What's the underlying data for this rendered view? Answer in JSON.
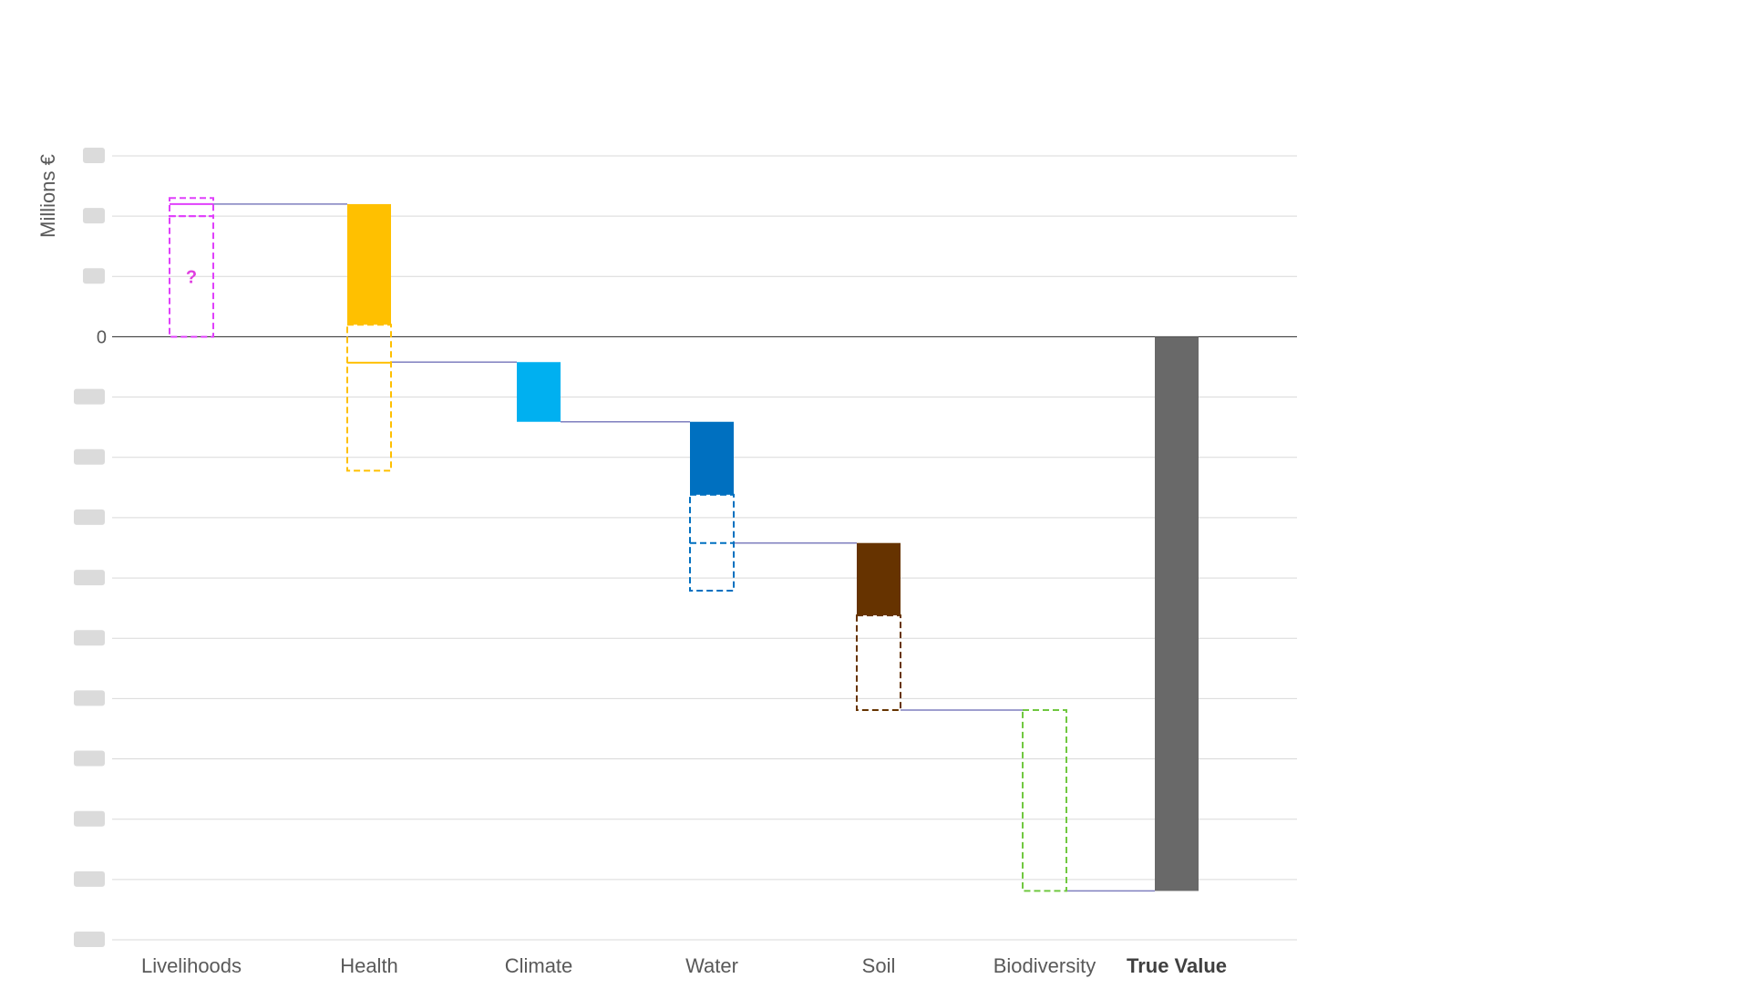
{
  "chart_data": {
    "type": "waterfall",
    "ylabel": "Millions €",
    "ylim": [
      -1000,
      300
    ],
    "grid": true,
    "tick_values": [
      300,
      200,
      100,
      0,
      -100,
      -200,
      -300,
      -400,
      -500,
      -600,
      -700,
      -800,
      -900,
      -1000
    ],
    "tick_labels": [
      "",
      "",
      "",
      "0",
      "",
      "",
      "",
      "",
      "",
      "",
      "",
      "",
      "",
      ""
    ],
    "categories": [
      "Livelihoods",
      "Health",
      "Climate",
      "Water",
      "Soil",
      "Biodiversity",
      "True Value"
    ],
    "steps": [
      {
        "category": "Livelihoods",
        "color": "#e040fb",
        "solid": null,
        "dashed": [
          [
            0,
            200
          ],
          [
            200,
            230
          ]
        ],
        "solid_line_at": 220,
        "annotation": "?"
      },
      {
        "category": "Health",
        "color": "#ffc000",
        "solid": [
          20,
          220
        ],
        "dashed": [
          [
            -222,
            20
          ]
        ],
        "solid_line_at": -43,
        "annotation": ""
      },
      {
        "category": "Climate",
        "color": "#00b0f0",
        "solid": [
          -141,
          -42
        ],
        "dashed": [],
        "solid_line_at": null,
        "annotation": ""
      },
      {
        "category": "Water",
        "color": "#0070c0",
        "solid": [
          -262,
          -141
        ],
        "dashed": [
          [
            -421,
            -262
          ],
          [
            -342,
            -342
          ]
        ],
        "solid_line_at": null,
        "annotation": ""
      },
      {
        "category": "Soil",
        "color": "#663300",
        "solid": [
          -462,
          -342
        ],
        "dashed": [
          [
            -619,
            -462
          ]
        ],
        "solid_line_at": null,
        "annotation": ""
      },
      {
        "category": "Biodiversity",
        "color": "#70c840",
        "solid": null,
        "dashed": [
          [
            -919,
            -619
          ]
        ],
        "solid_line_at": null,
        "annotation": ""
      },
      {
        "category": "True Value",
        "color": "#696969",
        "solid": [
          -919,
          0
        ],
        "dashed": [],
        "solid_line_at": null,
        "annotation": ""
      }
    ],
    "connectors": [
      {
        "from": "Livelihoods",
        "to": "Health",
        "y": 220
      },
      {
        "from": "Health",
        "to": "Climate",
        "y": -42
      },
      {
        "from": "Climate",
        "to": "Water",
        "y": -141
      },
      {
        "from": "Water",
        "to": "Soil",
        "y": -342
      },
      {
        "from": "Soil",
        "to": "Biodiversity",
        "y": -619
      },
      {
        "from": "Biodiversity",
        "to": "True Value",
        "y": -919
      }
    ],
    "colors": {
      "grid": "#d9d9d9",
      "zero_line": "#404040",
      "connector": "#7f7fbf"
    }
  }
}
